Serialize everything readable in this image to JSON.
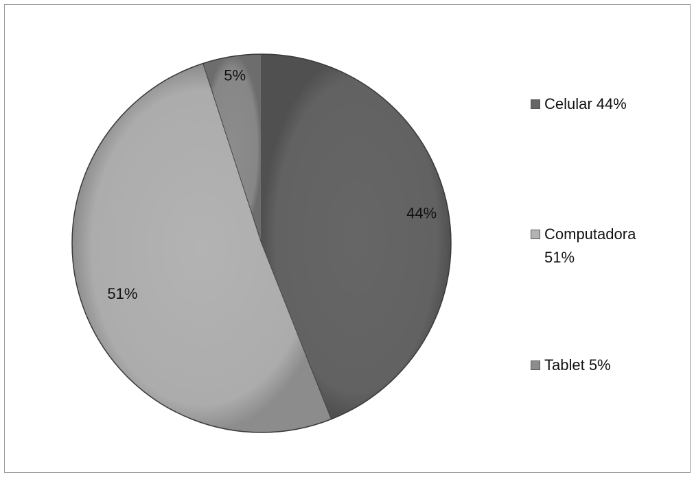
{
  "chart_data": {
    "type": "pie",
    "title": "",
    "slices": [
      {
        "label": "Celular",
        "value": 44,
        "data_label": "44%",
        "legend": "Celular 44%",
        "color": "#666666"
      },
      {
        "label": "Computadora",
        "value": 51,
        "data_label": "51%",
        "legend": "Computadora 51%",
        "color": "#b3b3b3"
      },
      {
        "label": "Tablet",
        "value": 5,
        "data_label": "5%",
        "legend": "Tablet 5%",
        "color": "#8c8c8c"
      }
    ],
    "legend_position": "right",
    "start_angle": "12 o'clock, clockwise"
  }
}
